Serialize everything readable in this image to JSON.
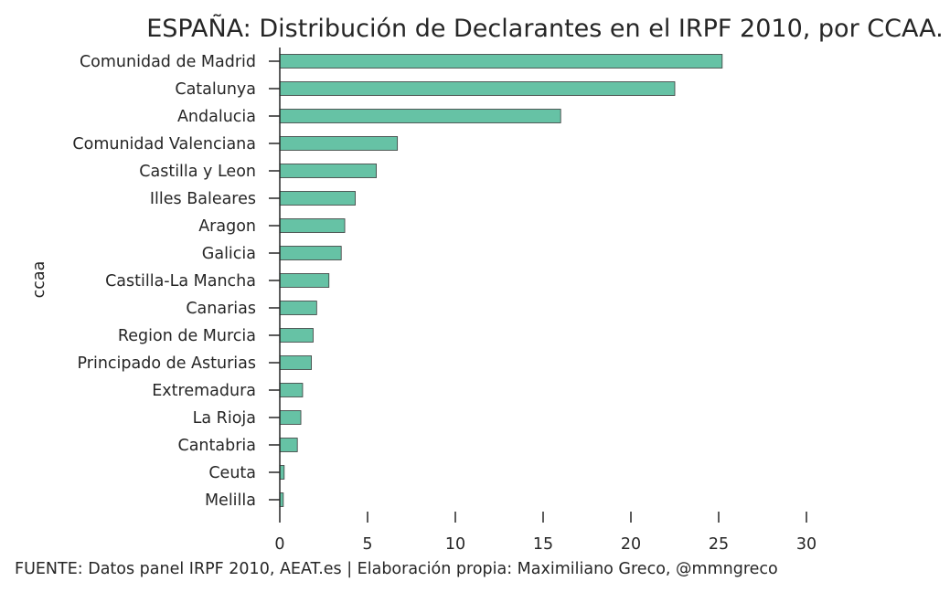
{
  "chart_data": {
    "type": "bar",
    "orientation": "horizontal",
    "title": "ESPAÑA: Distribución de Declarantes en el IRPF 2010, por CCAA.",
    "ylabel": "ccaa",
    "xlabel": "",
    "xlim": [
      0,
      30
    ],
    "xticks": [
      0,
      5,
      10,
      15,
      20,
      25,
      30
    ],
    "grid": false,
    "bar_color": "#66c2a5",
    "bar_edge_color": "#3a3a3a",
    "categories": [
      "Comunidad de Madrid",
      "Catalunya",
      "Andalucia",
      "Comunidad Valenciana",
      "Castilla y Leon",
      "Illes Baleares",
      "Aragon",
      "Galicia",
      "Castilla-La Mancha",
      "Canarias",
      "Region de Murcia",
      "Principado de Asturias",
      "Extremadura",
      "La Rioja",
      "Cantabria",
      "Ceuta",
      "Melilla"
    ],
    "values": [
      25.2,
      22.5,
      16.0,
      6.7,
      5.5,
      4.3,
      3.7,
      3.5,
      2.8,
      2.1,
      1.9,
      1.8,
      1.3,
      1.2,
      1.0,
      0.25,
      0.2
    ],
    "source_note": "FUENTE: Datos panel IRPF 2010, AEAT.es | Elaboración propia: Maximiliano Greco, @mmngreco"
  }
}
